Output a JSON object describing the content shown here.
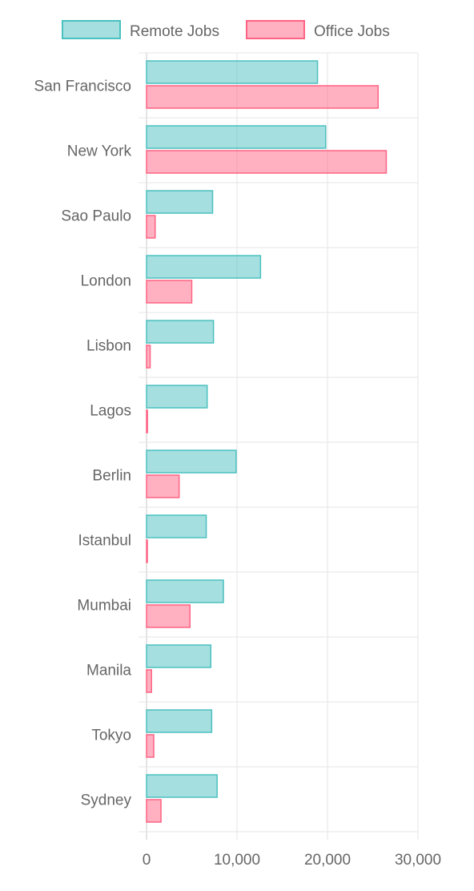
{
  "chart_data": {
    "type": "bar",
    "orientation": "horizontal",
    "categories": [
      "San Francisco",
      "New York",
      "Sao Paulo",
      "London",
      "Lisbon",
      "Lagos",
      "Berlin",
      "Istanbul",
      "Mumbai",
      "Manila",
      "Tokyo",
      "Sydney"
    ],
    "series": [
      {
        "name": "Remote Jobs",
        "color": "#4bc0c0",
        "values": [
          18900,
          19800,
          7300,
          12600,
          7400,
          6700,
          9900,
          6600,
          8500,
          7100,
          7200,
          7800
        ]
      },
      {
        "name": "Office Jobs",
        "color": "#ff6384",
        "values": [
          25600,
          26500,
          950,
          5000,
          400,
          100,
          3600,
          50,
          4800,
          550,
          800,
          1600
        ]
      }
    ],
    "xlim": [
      0,
      30000
    ],
    "x_ticks": [
      0,
      10000,
      20000,
      30000
    ],
    "x_tick_labels": [
      "0",
      "10,000",
      "20,000",
      "30,000"
    ],
    "grid": true,
    "legend_position": "top"
  }
}
